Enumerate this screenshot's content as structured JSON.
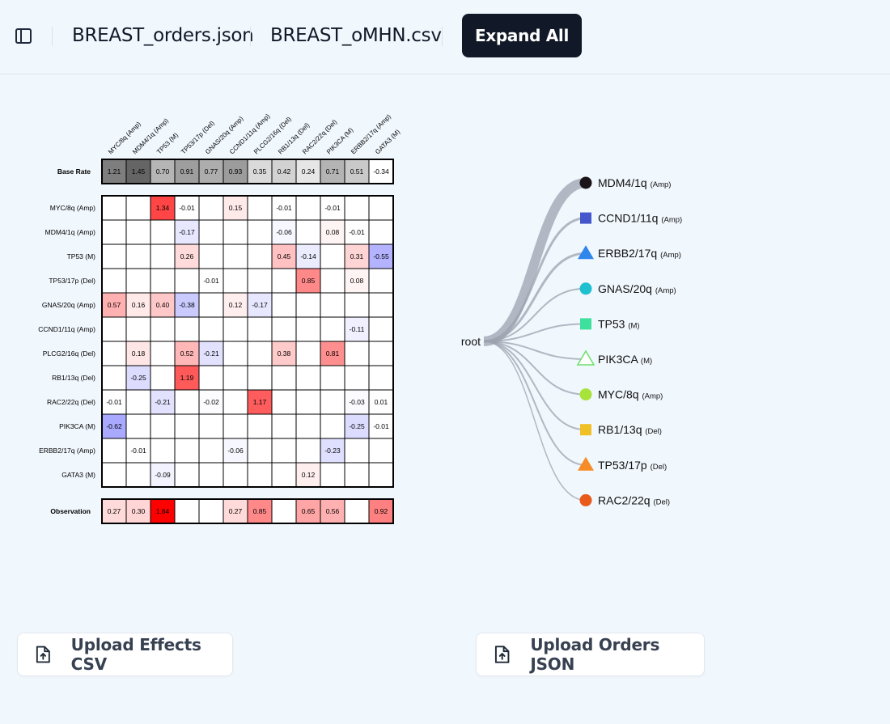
{
  "header": {
    "sidebar_icon": "sidebar-toggle-icon",
    "files": [
      "BREAST_orders.json",
      "BREAST_oMHN.csv"
    ],
    "expand_label": "Expand All"
  },
  "heatmap": {
    "columns": [
      "MYC/8q (Amp)",
      "MDM4/1q (Amp)",
      "TP53 (M)",
      "TP53/17p (Del)",
      "GNAS/20q (Amp)",
      "CCND1/11q (Amp)",
      "PLCG2/16q (Del)",
      "RB1/13q (Del)",
      "RAC2/22q (Del)",
      "PIK3CA (M)",
      "ERBB2/17q (Amp)",
      "GATA3 (M)"
    ],
    "base_rate_label": "Base Rate",
    "base_rate": [
      "1.21",
      "1.45",
      "0.70",
      "0.91",
      "0.77",
      "0.93",
      "0.35",
      "0.42",
      "0.24",
      "0.71",
      "0.51",
      "-0.34"
    ],
    "rows": [
      {
        "label": "MYC/8q (Amp)",
        "values": [
          "",
          "",
          "1.34",
          "-0.01",
          "",
          "0.15",
          "",
          "-0.01",
          "",
          "-0.01",
          "",
          ""
        ]
      },
      {
        "label": "MDM4/1q (Amp)",
        "values": [
          "",
          "",
          "",
          "-0.17",
          "",
          "",
          "",
          "-0.06",
          "",
          "0.08",
          "-0.01",
          ""
        ]
      },
      {
        "label": "TP53 (M)",
        "values": [
          "",
          "",
          "",
          "0.26",
          "",
          "",
          "",
          "0.45",
          "-0.14",
          "",
          "0.31",
          "-0.55"
        ]
      },
      {
        "label": "TP53/17p (Del)",
        "values": [
          "",
          "",
          "",
          "",
          "-0.01",
          "",
          "",
          "",
          "0.85",
          "",
          "0.08",
          ""
        ]
      },
      {
        "label": "GNAS/20q (Amp)",
        "values": [
          "0.57",
          "0.16",
          "0.40",
          "-0.38",
          "",
          "0.12",
          "-0.17",
          "",
          "",
          "",
          "",
          ""
        ]
      },
      {
        "label": "CCND1/11q (Amp)",
        "values": [
          "",
          "",
          "",
          "",
          "",
          "",
          "",
          "",
          "",
          "",
          "-0.11",
          ""
        ]
      },
      {
        "label": "PLCG2/16q (Del)",
        "values": [
          "",
          "0.18",
          "",
          "0.52",
          "-0.21",
          "",
          "",
          "0.38",
          "",
          "0.81",
          "",
          ""
        ]
      },
      {
        "label": "RB1/13q (Del)",
        "values": [
          "",
          "-0.25",
          "",
          "1.19",
          "",
          "",
          "",
          "",
          "",
          "",
          "",
          ""
        ]
      },
      {
        "label": "RAC2/22q (Del)",
        "values": [
          "-0.01",
          "",
          "-0.21",
          "",
          "-0.02",
          "",
          "1.17",
          "",
          "",
          "",
          "-0.03",
          "0.01"
        ]
      },
      {
        "label": "PIK3CA (M)",
        "values": [
          "-0.62",
          "",
          "",
          "",
          "",
          "",
          "",
          "",
          "",
          "",
          "-0.25",
          "-0.01"
        ]
      },
      {
        "label": "ERBB2/17q (Amp)",
        "values": [
          "",
          "-0.01",
          "",
          "",
          "",
          "-0.06",
          "",
          "",
          "",
          "-0.23",
          "",
          ""
        ]
      },
      {
        "label": "GATA3 (M)",
        "values": [
          "",
          "",
          "-0.09",
          "",
          "",
          "",
          "",
          "",
          "0.12",
          "",
          "",
          ""
        ]
      }
    ],
    "observation_label": "Observation",
    "observation": [
      "0.27",
      "0.30",
      "1.84",
      "",
      "",
      "0.27",
      "0.85",
      "",
      "0.65",
      "0.56",
      "",
      "0.92"
    ],
    "colors": {
      "positive": "#ff0000",
      "negative": "#0000ff",
      "base": "#555555"
    }
  },
  "tree": {
    "root_label": "root",
    "nodes": [
      {
        "name": "MDM4/1q",
        "suffix": "(Amp)",
        "shape": "circle",
        "color": "#1a1317",
        "filled": true,
        "weight": 12
      },
      {
        "name": "CCND1/11q",
        "suffix": "(Amp)",
        "shape": "square",
        "color": "#4555cc",
        "filled": true,
        "weight": 3
      },
      {
        "name": "ERBB2/17q",
        "suffix": "(Amp)",
        "shape": "triangle",
        "color": "#2f86eb",
        "filled": true,
        "weight": 3
      },
      {
        "name": "GNAS/20q",
        "suffix": "(Amp)",
        "shape": "circle",
        "color": "#1fc0d0",
        "filled": true,
        "weight": 2
      },
      {
        "name": "TP53",
        "suffix": "(M)",
        "shape": "square",
        "color": "#3ee09e",
        "filled": true,
        "weight": 2
      },
      {
        "name": "PIK3CA",
        "suffix": "(M)",
        "shape": "triangle",
        "color": "#6be06b",
        "filled": false,
        "weight": 2
      },
      {
        "name": "MYC/8q",
        "suffix": "(Amp)",
        "shape": "circle",
        "color": "#a7e33b",
        "filled": true,
        "weight": 2
      },
      {
        "name": "RB1/13q",
        "suffix": "(Del)",
        "shape": "square",
        "color": "#f0c027",
        "filled": true,
        "weight": 2
      },
      {
        "name": "TP53/17p",
        "suffix": "(Del)",
        "shape": "triangle",
        "color": "#f78b26",
        "filled": true,
        "weight": 2
      },
      {
        "name": "RAC2/22q",
        "suffix": "(Del)",
        "shape": "circle",
        "color": "#e85b1a",
        "filled": true,
        "weight": 1.5
      }
    ]
  },
  "uploads": {
    "effects_label": "Upload Effects CSV",
    "orders_label": "Upload Orders JSON",
    "icon": "file-upload-icon"
  }
}
